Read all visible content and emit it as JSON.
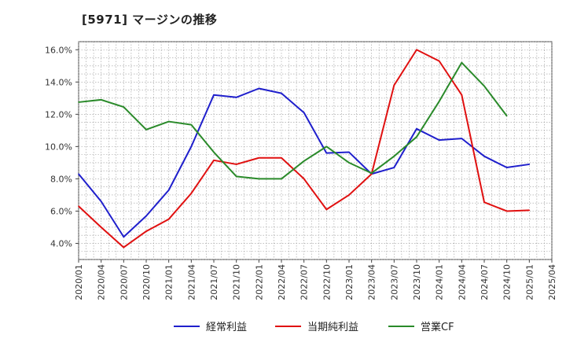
{
  "chart_data": {
    "type": "line",
    "title": "[5971]  マージンの推移",
    "xlabel": "",
    "ylabel": "",
    "ylim": [
      3.0,
      16.5
    ],
    "y_ticks": [
      4.0,
      6.0,
      8.0,
      10.0,
      12.0,
      14.0,
      16.0
    ],
    "y_tick_labels": [
      "4.0%",
      "6.0%",
      "8.0%",
      "10.0%",
      "12.0%",
      "14.0%",
      "16.0%"
    ],
    "categories": [
      "2020/01",
      "2020/04",
      "2020/07",
      "2020/10",
      "2021/01",
      "2021/04",
      "2021/07",
      "2021/10",
      "2022/01",
      "2022/04",
      "2022/07",
      "2022/10",
      "2023/01",
      "2023/04",
      "2023/07",
      "2023/10",
      "2024/01",
      "2024/04",
      "2024/07",
      "2024/10",
      "2025/01",
      "2025/04"
    ],
    "series": [
      {
        "name": "経常利益",
        "color": "#1f1fcc",
        "values": [
          8.3,
          6.6,
          4.4,
          5.7,
          7.3,
          10.0,
          13.2,
          13.05,
          13.6,
          13.3,
          12.1,
          9.6,
          9.65,
          8.3,
          8.7,
          11.1,
          10.4,
          10.5,
          9.4,
          8.7,
          8.9,
          null
        ]
      },
      {
        "name": "当期純利益",
        "color": "#e01010",
        "values": [
          6.3,
          5.0,
          3.75,
          4.75,
          5.5,
          7.1,
          9.15,
          8.9,
          9.3,
          9.3,
          8.0,
          6.1,
          7.0,
          8.3,
          13.8,
          16.0,
          15.3,
          13.2,
          6.55,
          6.0,
          6.05,
          null
        ]
      },
      {
        "name": "営業CF",
        "color": "#2a8a2a",
        "values": [
          12.75,
          12.9,
          12.45,
          11.05,
          11.55,
          11.35,
          9.65,
          8.15,
          8.0,
          8.0,
          9.1,
          10.0,
          9.0,
          8.35,
          9.4,
          10.6,
          12.8,
          15.2,
          13.75,
          11.9,
          null,
          null
        ]
      }
    ],
    "legend_position": "bottom",
    "grid": true
  }
}
